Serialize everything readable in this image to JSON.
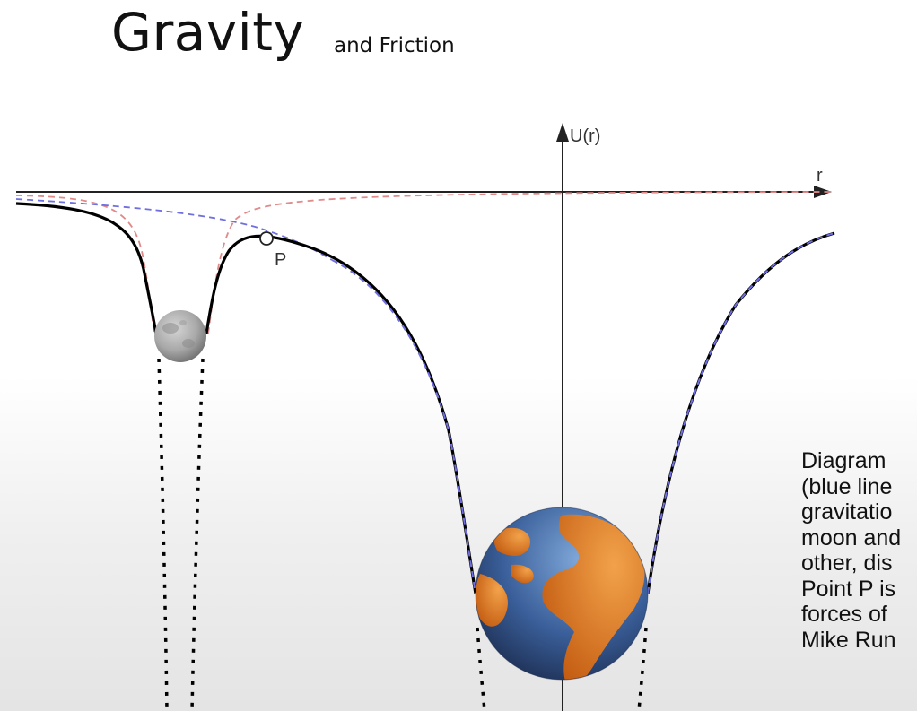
{
  "slide": {
    "title": "Gravity",
    "subtitle": "and Friction"
  },
  "diagram": {
    "y_axis_label": "U(r)",
    "x_axis_label": "r",
    "point_label": "P",
    "curve_colors": {
      "total": "#000000",
      "earth": "#6f6fe0",
      "moon": "#e08a8a"
    },
    "body_icons": [
      "moon-icon",
      "earth-icon"
    ]
  },
  "caption": {
    "lines": [
      "Diagram",
      "(blue line",
      "gravitatio",
      "moon and",
      "other, dis",
      "Point P is",
      "forces of",
      "Mike Run"
    ]
  }
}
